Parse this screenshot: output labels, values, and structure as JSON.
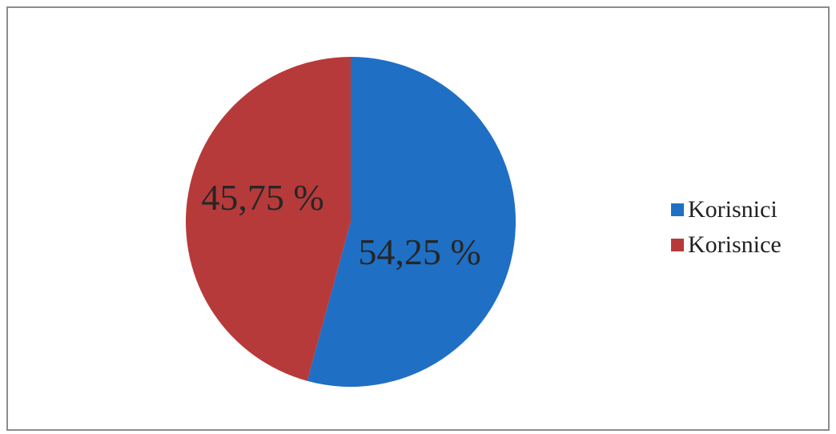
{
  "chart_data": {
    "type": "pie",
    "slices": [
      {
        "label": "Korisnici",
        "value": 54.25,
        "display": "54,25 %",
        "color": "#1f6fc5"
      },
      {
        "label": "Korisnice",
        "value": 45.75,
        "display": "45,75 %",
        "color": "#b73a3a"
      }
    ],
    "legend": [
      "Korisnici",
      "Korisnice"
    ],
    "legend_position": "right",
    "start_angle": "12 o'clock",
    "direction": "clockwise"
  }
}
